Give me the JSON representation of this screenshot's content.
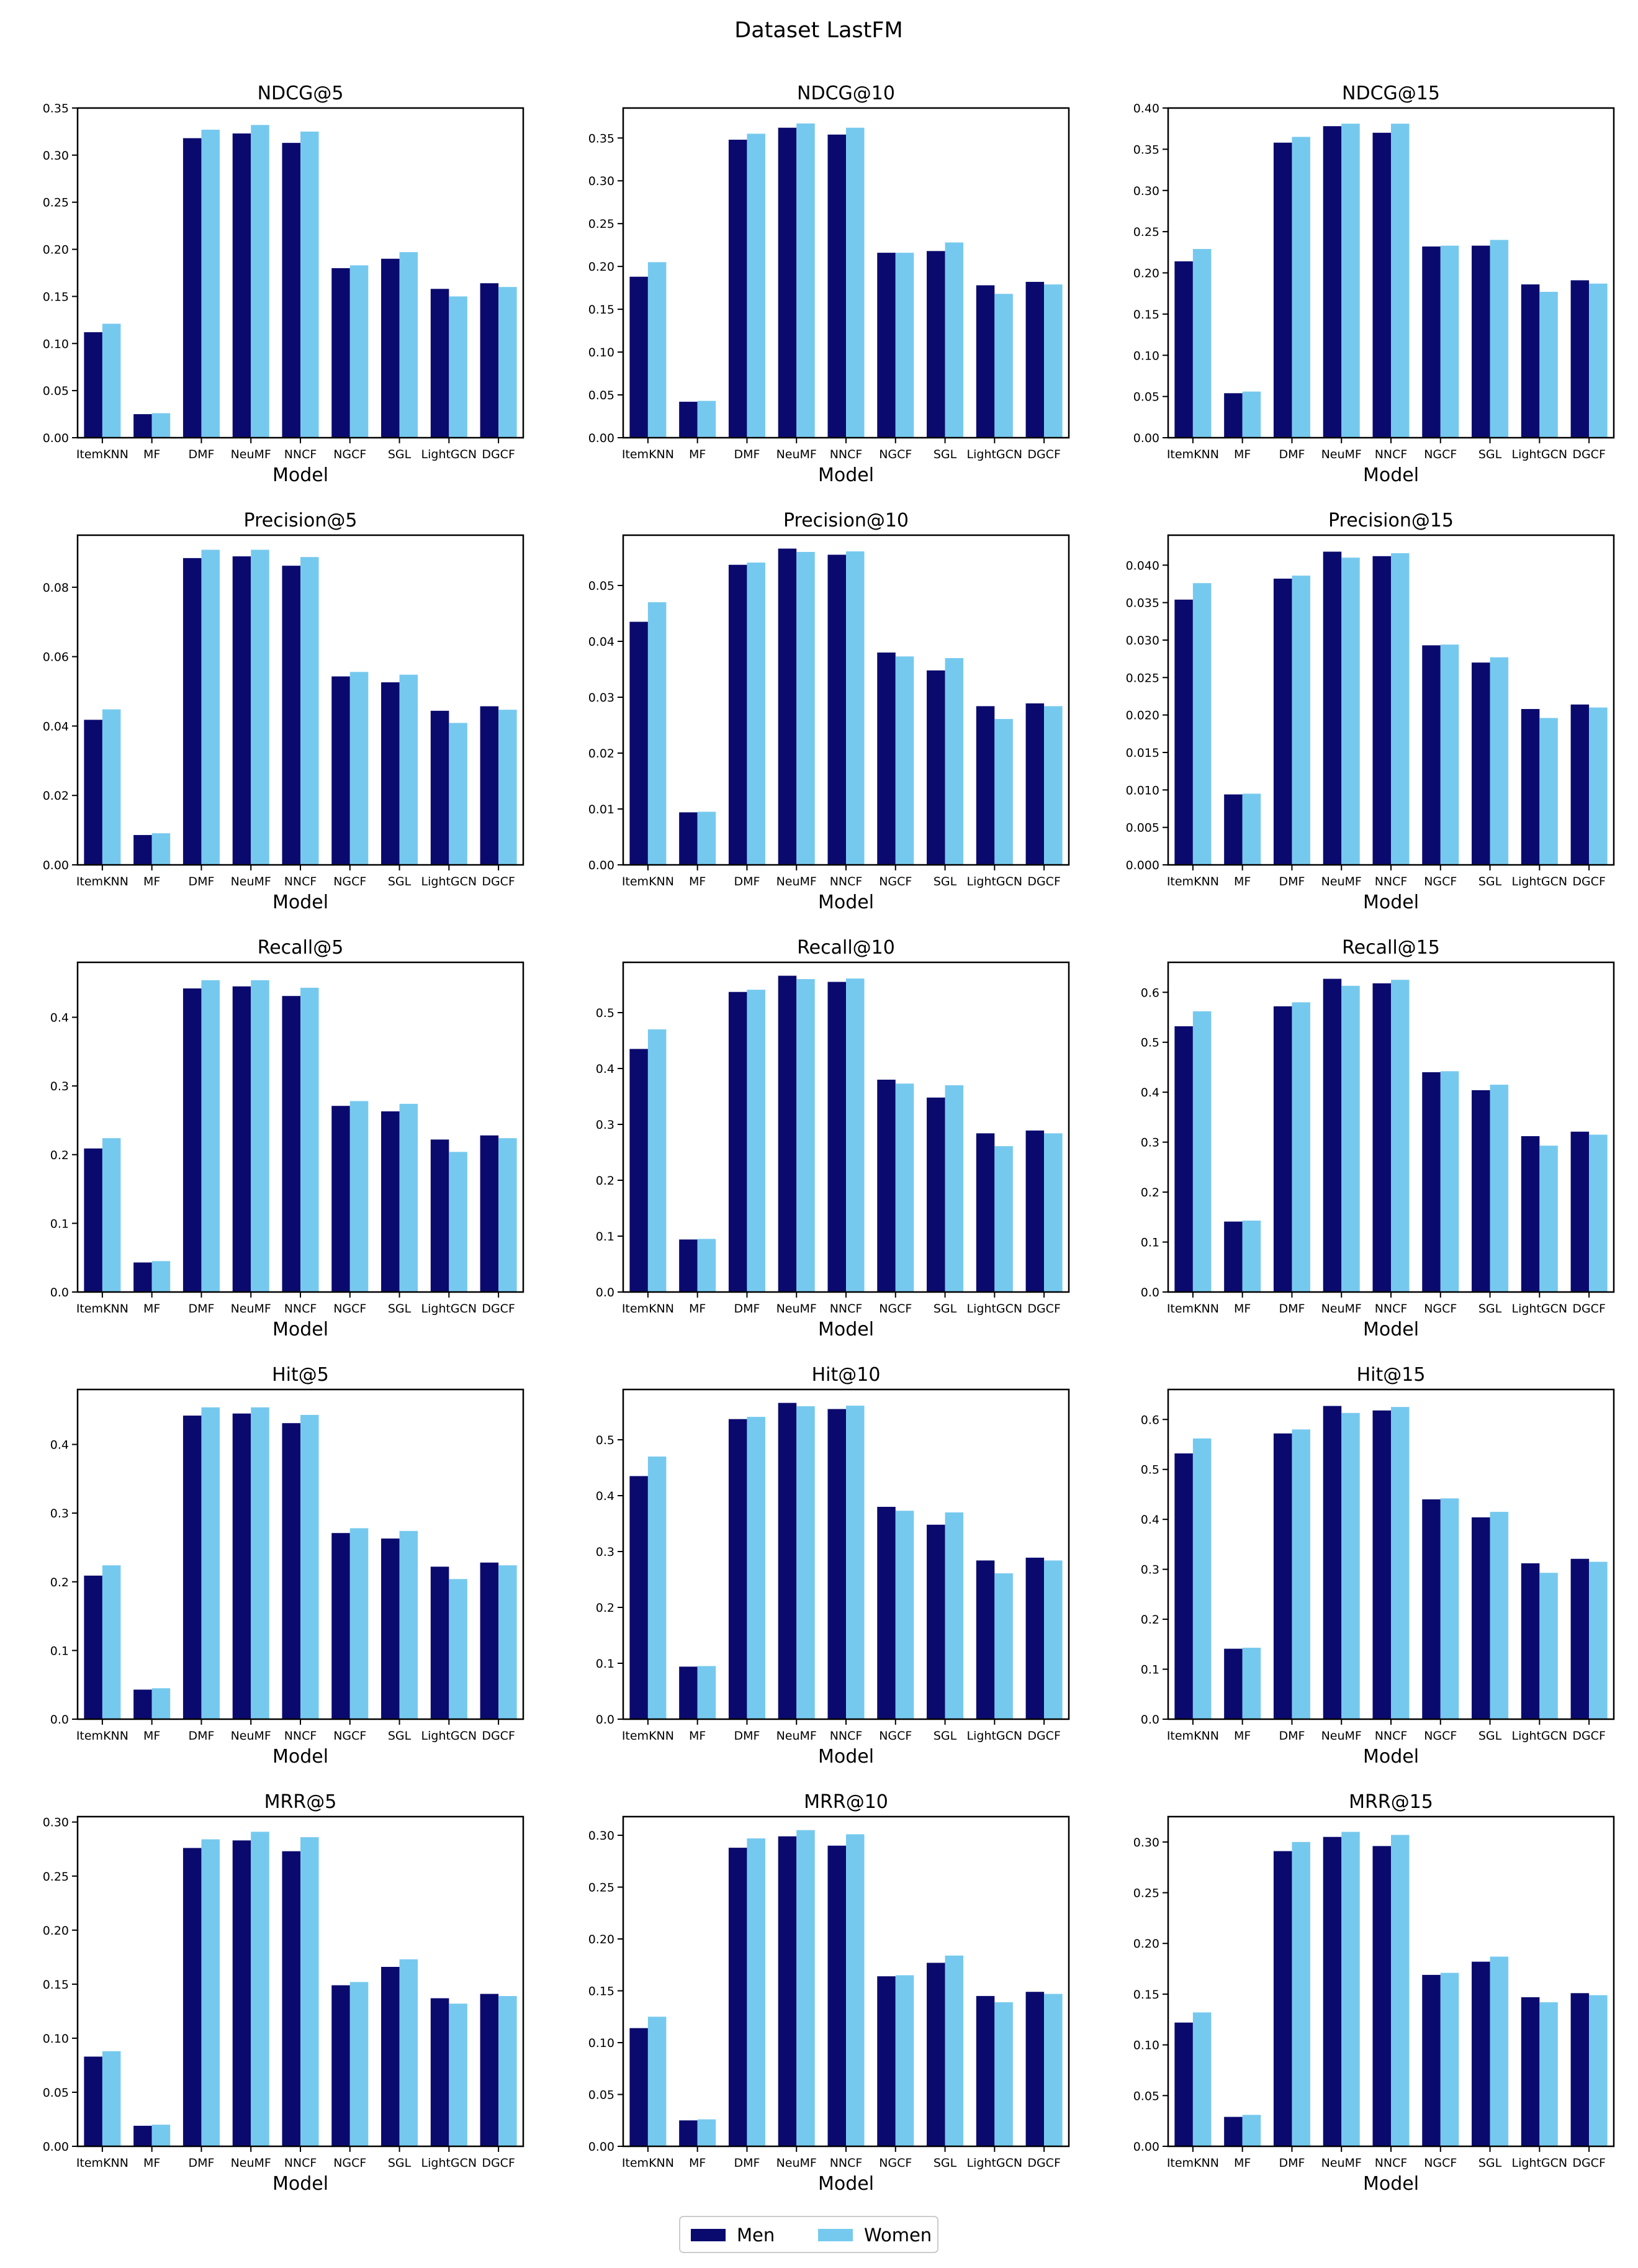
{
  "figure_title": "Dataset LastFM",
  "colors": {
    "Men": "#0a0a6e",
    "Women": "#76c9ee",
    "axis": "#000000"
  },
  "legend": {
    "location": "bottom-center",
    "entries": [
      "Men",
      "Women"
    ]
  },
  "chart_data": [
    {
      "type": "bar",
      "title": "NDCG@5",
      "xlabel": "Model",
      "ylabel": "",
      "categories": [
        "ItemKNN",
        "MF",
        "DMF",
        "NeuMF",
        "NNCF",
        "NGCF",
        "SGL",
        "LightGCN",
        "DGCF"
      ],
      "ylim": [
        0,
        0.35
      ],
      "yticks": [
        0,
        0.05,
        0.1,
        0.15,
        0.2,
        0.25,
        0.3,
        0.35
      ],
      "ytick_labels": [
        "0.00",
        "0.05",
        "0.10",
        "0.15",
        "0.20",
        "0.25",
        "0.30",
        "0.35"
      ],
      "series": [
        {
          "name": "Men",
          "values": [
            0.112,
            0.025,
            0.318,
            0.323,
            0.313,
            0.18,
            0.19,
            0.158,
            0.164
          ]
        },
        {
          "name": "Women",
          "values": [
            0.121,
            0.026,
            0.327,
            0.332,
            0.325,
            0.183,
            0.197,
            0.15,
            0.16
          ]
        }
      ]
    },
    {
      "type": "bar",
      "title": "NDCG@10",
      "xlabel": "Model",
      "ylabel": "",
      "categories": [
        "ItemKNN",
        "MF",
        "DMF",
        "NeuMF",
        "NNCF",
        "NGCF",
        "SGL",
        "LightGCN",
        "DGCF"
      ],
      "ylim": [
        0,
        0.385
      ],
      "yticks": [
        0,
        0.05,
        0.1,
        0.15,
        0.2,
        0.25,
        0.3,
        0.35
      ],
      "ytick_labels": [
        "0.00",
        "0.05",
        "0.10",
        "0.15",
        "0.20",
        "0.25",
        "0.30",
        "0.35"
      ],
      "series": [
        {
          "name": "Men",
          "values": [
            0.188,
            0.042,
            0.348,
            0.362,
            0.354,
            0.216,
            0.218,
            0.178,
            0.182
          ]
        },
        {
          "name": "Women",
          "values": [
            0.205,
            0.043,
            0.355,
            0.367,
            0.362,
            0.216,
            0.228,
            0.168,
            0.179
          ]
        }
      ]
    },
    {
      "type": "bar",
      "title": "NDCG@15",
      "xlabel": "Model",
      "ylabel": "",
      "categories": [
        "ItemKNN",
        "MF",
        "DMF",
        "NeuMF",
        "NNCF",
        "NGCF",
        "SGL",
        "LightGCN",
        "DGCF"
      ],
      "ylim": [
        0,
        0.4
      ],
      "yticks": [
        0,
        0.05,
        0.1,
        0.15,
        0.2,
        0.25,
        0.3,
        0.35,
        0.4
      ],
      "ytick_labels": [
        "0.00",
        "0.05",
        "0.10",
        "0.15",
        "0.20",
        "0.25",
        "0.30",
        "0.35",
        "0.40"
      ],
      "series": [
        {
          "name": "Men",
          "values": [
            0.214,
            0.054,
            0.358,
            0.378,
            0.37,
            0.232,
            0.233,
            0.186,
            0.191
          ]
        },
        {
          "name": "Women",
          "values": [
            0.229,
            0.056,
            0.365,
            0.381,
            0.381,
            0.233,
            0.24,
            0.177,
            0.187
          ]
        }
      ]
    },
    {
      "type": "bar",
      "title": "Precision@5",
      "xlabel": "Model",
      "ylabel": "",
      "categories": [
        "ItemKNN",
        "MF",
        "DMF",
        "NeuMF",
        "NNCF",
        "NGCF",
        "SGL",
        "LightGCN",
        "DGCF"
      ],
      "ylim": [
        0,
        0.095
      ],
      "yticks": [
        0,
        0.02,
        0.04,
        0.06,
        0.08
      ],
      "ytick_labels": [
        "0.00",
        "0.02",
        "0.04",
        "0.06",
        "0.08"
      ],
      "series": [
        {
          "name": "Men",
          "values": [
            0.0418,
            0.0086,
            0.0884,
            0.0889,
            0.0862,
            0.0543,
            0.0526,
            0.0444,
            0.0457
          ]
        },
        {
          "name": "Women",
          "values": [
            0.0448,
            0.0091,
            0.0908,
            0.0908,
            0.0887,
            0.0556,
            0.0548,
            0.0409,
            0.0447
          ]
        }
      ]
    },
    {
      "type": "bar",
      "title": "Precision@10",
      "xlabel": "Model",
      "ylabel": "",
      "categories": [
        "ItemKNN",
        "MF",
        "DMF",
        "NeuMF",
        "NNCF",
        "NGCF",
        "SGL",
        "LightGCN",
        "DGCF"
      ],
      "ylim": [
        0,
        0.059
      ],
      "yticks": [
        0,
        0.01,
        0.02,
        0.03,
        0.04,
        0.05
      ],
      "ytick_labels": [
        "0.00",
        "0.01",
        "0.02",
        "0.03",
        "0.04",
        "0.05"
      ],
      "series": [
        {
          "name": "Men",
          "values": [
            0.0435,
            0.0094,
            0.0537,
            0.0566,
            0.0555,
            0.038,
            0.0348,
            0.0284,
            0.0289
          ]
        },
        {
          "name": "Women",
          "values": [
            0.047,
            0.0095,
            0.0541,
            0.056,
            0.0561,
            0.0373,
            0.037,
            0.0261,
            0.0284
          ]
        }
      ]
    },
    {
      "type": "bar",
      "title": "Precision@15",
      "xlabel": "Model",
      "ylabel": "",
      "categories": [
        "ItemKNN",
        "MF",
        "DMF",
        "NeuMF",
        "NNCF",
        "NGCF",
        "SGL",
        "LightGCN",
        "DGCF"
      ],
      "ylim": [
        0,
        0.044
      ],
      "yticks": [
        0,
        0.005,
        0.01,
        0.015,
        0.02,
        0.025,
        0.03,
        0.035,
        0.04
      ],
      "ytick_labels": [
        "0.000",
        "0.005",
        "0.010",
        "0.015",
        "0.020",
        "0.025",
        "0.030",
        "0.035",
        "0.040"
      ],
      "series": [
        {
          "name": "Men",
          "values": [
            0.0354,
            0.0094,
            0.0382,
            0.0418,
            0.0412,
            0.0293,
            0.027,
            0.0208,
            0.0214
          ]
        },
        {
          "name": "Women",
          "values": [
            0.0376,
            0.0095,
            0.0386,
            0.041,
            0.0416,
            0.0294,
            0.0277,
            0.0196,
            0.021
          ]
        }
      ]
    },
    {
      "type": "bar",
      "title": "Recall@5",
      "xlabel": "Model",
      "ylabel": "",
      "categories": [
        "ItemKNN",
        "MF",
        "DMF",
        "NeuMF",
        "NNCF",
        "NGCF",
        "SGL",
        "LightGCN",
        "DGCF"
      ],
      "ylim": [
        0,
        0.48
      ],
      "yticks": [
        0,
        0.1,
        0.2,
        0.3,
        0.4
      ],
      "ytick_labels": [
        "0.0",
        "0.1",
        "0.2",
        "0.3",
        "0.4"
      ],
      "series": [
        {
          "name": "Men",
          "values": [
            0.209,
            0.043,
            0.442,
            0.445,
            0.431,
            0.271,
            0.263,
            0.222,
            0.228
          ]
        },
        {
          "name": "Women",
          "values": [
            0.224,
            0.045,
            0.454,
            0.454,
            0.443,
            0.278,
            0.274,
            0.204,
            0.224
          ]
        }
      ]
    },
    {
      "type": "bar",
      "title": "Recall@10",
      "xlabel": "Model",
      "ylabel": "",
      "categories": [
        "ItemKNN",
        "MF",
        "DMF",
        "NeuMF",
        "NNCF",
        "NGCF",
        "SGL",
        "LightGCN",
        "DGCF"
      ],
      "ylim": [
        0,
        0.59
      ],
      "yticks": [
        0,
        0.1,
        0.2,
        0.3,
        0.4,
        0.5
      ],
      "ytick_labels": [
        "0.0",
        "0.1",
        "0.2",
        "0.3",
        "0.4",
        "0.5"
      ],
      "series": [
        {
          "name": "Men",
          "values": [
            0.435,
            0.094,
            0.537,
            0.566,
            0.555,
            0.38,
            0.348,
            0.284,
            0.289
          ]
        },
        {
          "name": "Women",
          "values": [
            0.47,
            0.095,
            0.541,
            0.56,
            0.561,
            0.373,
            0.37,
            0.261,
            0.284
          ]
        }
      ]
    },
    {
      "type": "bar",
      "title": "Recall@15",
      "xlabel": "Model",
      "ylabel": "",
      "categories": [
        "ItemKNN",
        "MF",
        "DMF",
        "NeuMF",
        "NNCF",
        "NGCF",
        "SGL",
        "LightGCN",
        "DGCF"
      ],
      "ylim": [
        0,
        0.66
      ],
      "yticks": [
        0,
        0.1,
        0.2,
        0.3,
        0.4,
        0.5,
        0.6
      ],
      "ytick_labels": [
        "0.0",
        "0.1",
        "0.2",
        "0.3",
        "0.4",
        "0.5",
        "0.6"
      ],
      "series": [
        {
          "name": "Men",
          "values": [
            0.532,
            0.141,
            0.572,
            0.627,
            0.618,
            0.44,
            0.404,
            0.312,
            0.321
          ]
        },
        {
          "name": "Women",
          "values": [
            0.562,
            0.143,
            0.58,
            0.613,
            0.625,
            0.442,
            0.415,
            0.293,
            0.315
          ]
        }
      ]
    },
    {
      "type": "bar",
      "title": "Hit@5",
      "xlabel": "Model",
      "ylabel": "",
      "categories": [
        "ItemKNN",
        "MF",
        "DMF",
        "NeuMF",
        "NNCF",
        "NGCF",
        "SGL",
        "LightGCN",
        "DGCF"
      ],
      "ylim": [
        0,
        0.48
      ],
      "yticks": [
        0,
        0.1,
        0.2,
        0.3,
        0.4
      ],
      "ytick_labels": [
        "0.0",
        "0.1",
        "0.2",
        "0.3",
        "0.4"
      ],
      "series": [
        {
          "name": "Men",
          "values": [
            0.209,
            0.043,
            0.442,
            0.445,
            0.431,
            0.271,
            0.263,
            0.222,
            0.228
          ]
        },
        {
          "name": "Women",
          "values": [
            0.224,
            0.045,
            0.454,
            0.454,
            0.443,
            0.278,
            0.274,
            0.204,
            0.224
          ]
        }
      ]
    },
    {
      "type": "bar",
      "title": "Hit@10",
      "xlabel": "Model",
      "ylabel": "",
      "categories": [
        "ItemKNN",
        "MF",
        "DMF",
        "NeuMF",
        "NNCF",
        "NGCF",
        "SGL",
        "LightGCN",
        "DGCF"
      ],
      "ylim": [
        0,
        0.59
      ],
      "yticks": [
        0,
        0.1,
        0.2,
        0.3,
        0.4,
        0.5
      ],
      "ytick_labels": [
        "0.0",
        "0.1",
        "0.2",
        "0.3",
        "0.4",
        "0.5"
      ],
      "series": [
        {
          "name": "Men",
          "values": [
            0.435,
            0.094,
            0.537,
            0.566,
            0.555,
            0.38,
            0.348,
            0.284,
            0.289
          ]
        },
        {
          "name": "Women",
          "values": [
            0.47,
            0.095,
            0.541,
            0.56,
            0.561,
            0.373,
            0.37,
            0.261,
            0.284
          ]
        }
      ]
    },
    {
      "type": "bar",
      "title": "Hit@15",
      "xlabel": "Model",
      "ylabel": "",
      "categories": [
        "ItemKNN",
        "MF",
        "DMF",
        "NeuMF",
        "NNCF",
        "NGCF",
        "SGL",
        "LightGCN",
        "DGCF"
      ],
      "ylim": [
        0,
        0.66
      ],
      "yticks": [
        0,
        0.1,
        0.2,
        0.3,
        0.4,
        0.5,
        0.6
      ],
      "ytick_labels": [
        "0.0",
        "0.1",
        "0.2",
        "0.3",
        "0.4",
        "0.5",
        "0.6"
      ],
      "series": [
        {
          "name": "Men",
          "values": [
            0.532,
            0.141,
            0.572,
            0.627,
            0.618,
            0.44,
            0.404,
            0.312,
            0.321
          ]
        },
        {
          "name": "Women",
          "values": [
            0.562,
            0.143,
            0.58,
            0.613,
            0.625,
            0.442,
            0.415,
            0.293,
            0.315
          ]
        }
      ]
    },
    {
      "type": "bar",
      "title": "MRR@5",
      "xlabel": "Model",
      "ylabel": "",
      "categories": [
        "ItemKNN",
        "MF",
        "DMF",
        "NeuMF",
        "NNCF",
        "NGCF",
        "SGL",
        "LightGCN",
        "DGCF"
      ],
      "ylim": [
        0,
        0.305
      ],
      "yticks": [
        0,
        0.05,
        0.1,
        0.15,
        0.2,
        0.25,
        0.3
      ],
      "ytick_labels": [
        "0.00",
        "0.05",
        "0.10",
        "0.15",
        "0.20",
        "0.25",
        "0.30"
      ],
      "series": [
        {
          "name": "Men",
          "values": [
            0.083,
            0.019,
            0.276,
            0.283,
            0.273,
            0.149,
            0.166,
            0.137,
            0.141
          ]
        },
        {
          "name": "Women",
          "values": [
            0.088,
            0.02,
            0.284,
            0.291,
            0.286,
            0.152,
            0.173,
            0.132,
            0.139
          ]
        }
      ]
    },
    {
      "type": "bar",
      "title": "MRR@10",
      "xlabel": "Model",
      "ylabel": "",
      "categories": [
        "ItemKNN",
        "MF",
        "DMF",
        "NeuMF",
        "NNCF",
        "NGCF",
        "SGL",
        "LightGCN",
        "DGCF"
      ],
      "ylim": [
        0,
        0.318
      ],
      "yticks": [
        0,
        0.05,
        0.1,
        0.15,
        0.2,
        0.25,
        0.3
      ],
      "ytick_labels": [
        "0.00",
        "0.05",
        "0.10",
        "0.15",
        "0.20",
        "0.25",
        "0.30"
      ],
      "series": [
        {
          "name": "Men",
          "values": [
            0.114,
            0.025,
            0.288,
            0.299,
            0.29,
            0.164,
            0.177,
            0.145,
            0.149
          ]
        },
        {
          "name": "Women",
          "values": [
            0.125,
            0.026,
            0.297,
            0.305,
            0.301,
            0.165,
            0.184,
            0.139,
            0.147
          ]
        }
      ]
    },
    {
      "type": "bar",
      "title": "MRR@15",
      "xlabel": "Model",
      "ylabel": "",
      "categories": [
        "ItemKNN",
        "MF",
        "DMF",
        "NeuMF",
        "NNCF",
        "NGCF",
        "SGL",
        "LightGCN",
        "DGCF"
      ],
      "ylim": [
        0,
        0.325
      ],
      "yticks": [
        0,
        0.05,
        0.1,
        0.15,
        0.2,
        0.25,
        0.3
      ],
      "ytick_labels": [
        "0.00",
        "0.05",
        "0.10",
        "0.15",
        "0.20",
        "0.25",
        "0.30"
      ],
      "series": [
        {
          "name": "Men",
          "values": [
            0.122,
            0.029,
            0.291,
            0.305,
            0.296,
            0.169,
            0.182,
            0.147,
            0.151
          ]
        },
        {
          "name": "Women",
          "values": [
            0.132,
            0.031,
            0.3,
            0.31,
            0.307,
            0.171,
            0.187,
            0.142,
            0.149
          ]
        }
      ]
    }
  ]
}
